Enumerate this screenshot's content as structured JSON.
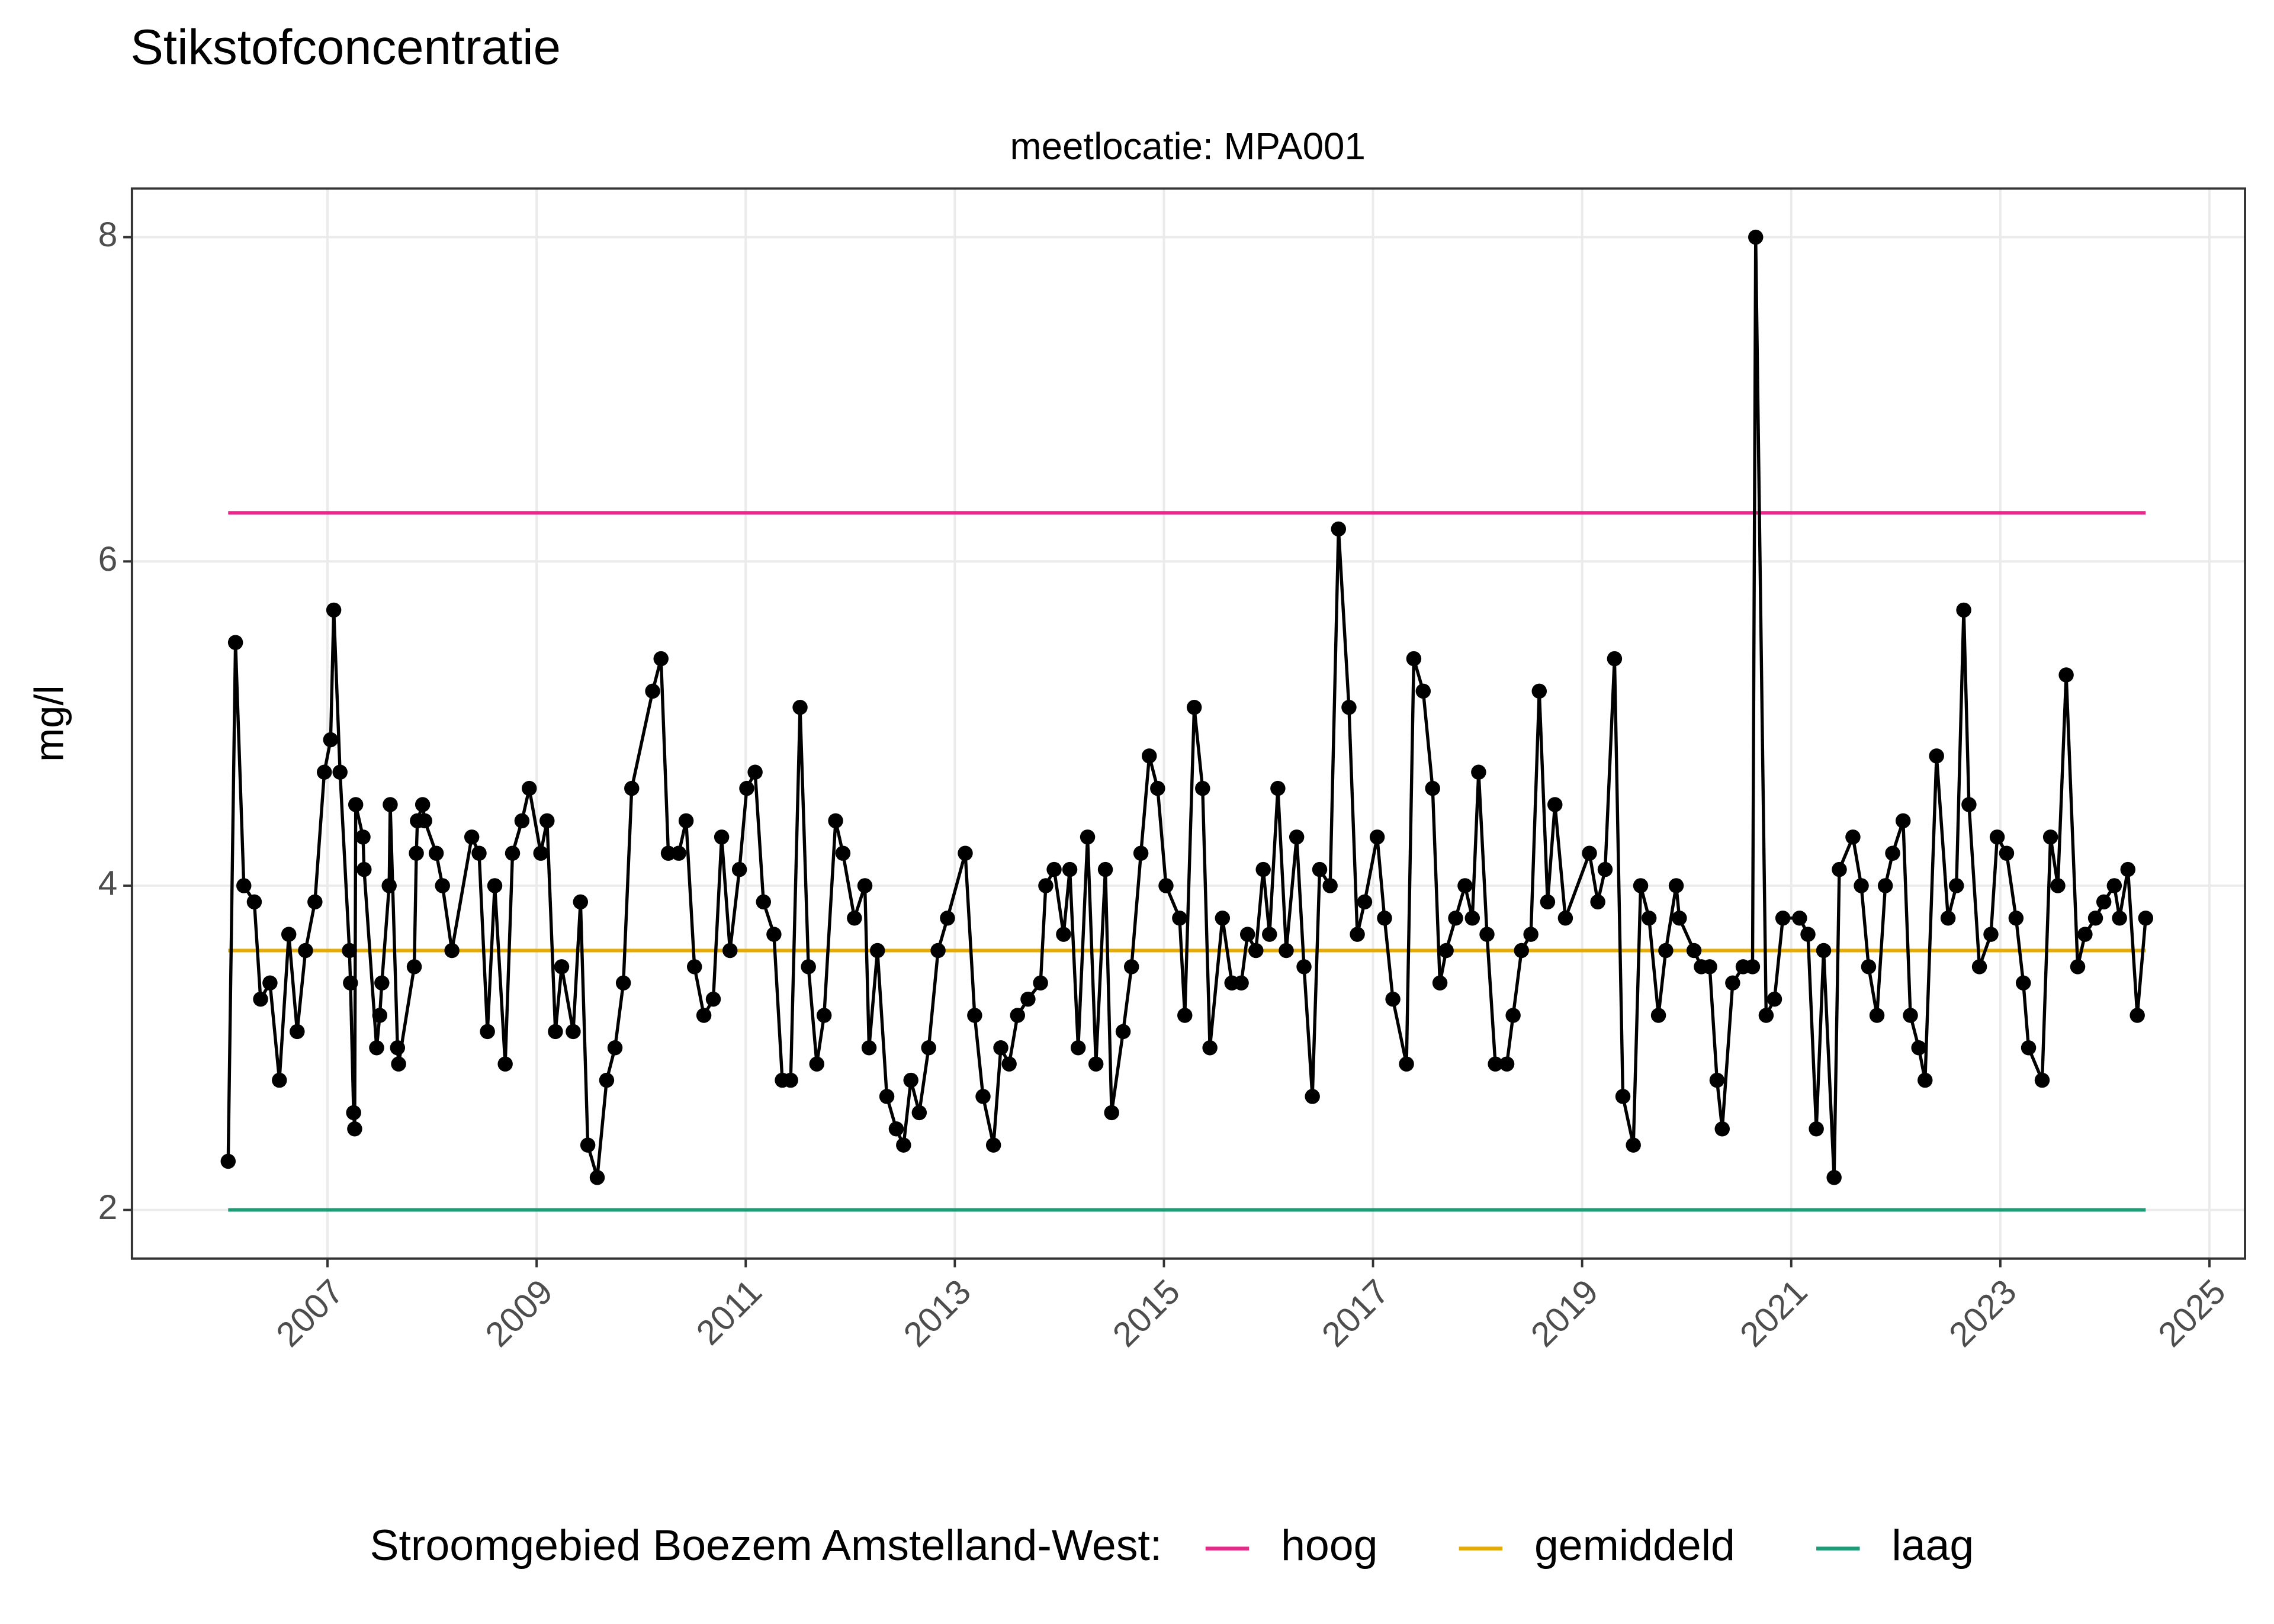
{
  "chart_data": {
    "type": "line",
    "title": "Stikstofconcentratie",
    "subtitle": "meetlocatie: MPA001",
    "ylabel": "mg/l",
    "legend_title": "Stroomgebied Boezem Amstelland-West:",
    "legend": "bottom",
    "grid": true,
    "markers": true,
    "color": "#000000",
    "x": [
      2006.05,
      2006.12,
      2006.2,
      2006.3,
      2006.36,
      2006.45,
      2006.54,
      2006.63,
      2006.71,
      2006.79,
      2006.88,
      2006.97,
      2007.03,
      2007.06,
      2007.12,
      2007.21,
      2007.22,
      2007.25,
      2007.26,
      2007.27,
      2007.34,
      2007.35,
      2007.47,
      2007.5,
      2007.52,
      2007.59,
      2007.6,
      2007.67,
      2007.68,
      2007.83,
      2007.85,
      2007.86,
      2007.91,
      2007.93,
      2008.04,
      2008.1,
      2008.19,
      2008.38,
      2008.45,
      2008.53,
      2008.6,
      2008.7,
      2008.77,
      2008.86,
      2008.93,
      2009.04,
      2009.1,
      2009.18,
      2009.24,
      2009.35,
      2009.42,
      2009.49,
      2009.58,
      2009.67,
      2009.75,
      2009.83,
      2009.91,
      2010.11,
      2010.19,
      2010.26,
      2010.36,
      2010.43,
      2010.51,
      2010.6,
      2010.69,
      2010.77,
      2010.85,
      2010.94,
      2011.01,
      2011.09,
      2011.17,
      2011.27,
      2011.35,
      2011.43,
      2011.52,
      2011.6,
      2011.68,
      2011.75,
      2011.86,
      2011.93,
      2012.04,
      2012.14,
      2012.18,
      2012.26,
      2012.35,
      2012.44,
      2012.51,
      2012.58,
      2012.66,
      2012.75,
      2012.84,
      2012.93,
      2013.1,
      2013.19,
      2013.27,
      2013.37,
      2013.44,
      2013.52,
      2013.6,
      2013.7,
      2013.82,
      2013.87,
      2013.95,
      2014.04,
      2014.1,
      2014.18,
      2014.27,
      2014.35,
      2014.44,
      2014.5,
      2014.61,
      2014.69,
      2014.78,
      2014.86,
      2014.94,
      2015.02,
      2015.15,
      2015.2,
      2015.29,
      2015.37,
      2015.44,
      2015.56,
      2015.65,
      2015.74,
      2015.8,
      2015.88,
      2015.95,
      2016.01,
      2016.09,
      2016.17,
      2016.27,
      2016.34,
      2016.42,
      2016.49,
      2016.59,
      2016.67,
      2016.77,
      2016.85,
      2016.92,
      2017.04,
      2017.11,
      2017.19,
      2017.32,
      2017.39,
      2017.48,
      2017.57,
      2017.64,
      2017.7,
      2017.79,
      2017.88,
      2017.95,
      2018.01,
      2018.09,
      2018.17,
      2018.28,
      2018.34,
      2018.42,
      2018.51,
      2018.59,
      2018.67,
      2018.74,
      2018.84,
      2019.07,
      2019.15,
      2019.22,
      2019.31,
      2019.39,
      2019.49,
      2019.56,
      2019.64,
      2019.73,
      2019.8,
      2019.9,
      2019.93,
      2020.07,
      2020.14,
      2020.22,
      2020.29,
      2020.34,
      2020.44,
      2020.54,
      2020.63,
      2020.66,
      2020.76,
      2020.84,
      2020.92,
      2021.08,
      2021.16,
      2021.24,
      2021.31,
      2021.41,
      2021.46,
      2021.59,
      2021.67,
      2021.74,
      2021.82,
      2021.9,
      2021.97,
      2022.07,
      2022.14,
      2022.22,
      2022.28,
      2022.39,
      2022.5,
      2022.58,
      2022.65,
      2022.7,
      2022.8,
      2022.91,
      2022.97,
      2023.06,
      2023.15,
      2023.22,
      2023.27,
      2023.4,
      2023.48,
      2023.55,
      2023.63,
      2023.74,
      2023.81,
      2023.91,
      2023.99,
      2024.09,
      2024.14,
      2024.22,
      2024.31,
      2024.39
    ],
    "values": [
      2.3,
      5.5,
      4.0,
      3.9,
      3.3,
      3.4,
      2.8,
      3.7,
      3.1,
      3.6,
      3.9,
      4.7,
      4.9,
      5.7,
      4.7,
      3.6,
      3.4,
      2.6,
      2.5,
      4.5,
      4.3,
      4.1,
      3.0,
      3.2,
      3.4,
      4.0,
      4.5,
      3.0,
      2.9,
      3.5,
      4.2,
      4.4,
      4.5,
      4.4,
      4.2,
      4.0,
      3.6,
      4.3,
      4.2,
      3.1,
      4.0,
      2.9,
      4.2,
      4.4,
      4.6,
      4.2,
      4.4,
      3.1,
      3.5,
      3.1,
      3.9,
      2.4,
      2.2,
      2.8,
      3.0,
      3.4,
      4.6,
      5.2,
      5.4,
      4.2,
      4.2,
      4.4,
      3.5,
      3.2,
      3.3,
      4.3,
      3.6,
      4.1,
      4.6,
      4.7,
      3.9,
      3.7,
      2.8,
      2.8,
      5.1,
      3.5,
      2.9,
      3.2,
      4.4,
      4.2,
      3.8,
      4.0,
      3.0,
      3.6,
      2.7,
      2.5,
      2.4,
      2.8,
      2.6,
      3.0,
      3.6,
      3.8,
      4.2,
      3.2,
      2.7,
      2.4,
      3.0,
      2.9,
      3.2,
      3.3,
      3.4,
      4.0,
      4.1,
      3.7,
      4.1,
      3.0,
      4.3,
      2.9,
      4.1,
      2.6,
      3.1,
      3.5,
      4.2,
      4.8,
      4.6,
      4.0,
      3.8,
      3.2,
      5.1,
      4.6,
      3.0,
      3.8,
      3.4,
      3.4,
      3.7,
      3.6,
      4.1,
      3.7,
      4.6,
      3.6,
      4.3,
      3.5,
      2.7,
      4.1,
      4.0,
      6.2,
      5.1,
      3.7,
      3.9,
      4.3,
      3.8,
      3.3,
      2.9,
      5.4,
      5.2,
      4.6,
      3.4,
      3.6,
      3.8,
      4.0,
      3.8,
      4.7,
      3.7,
      2.9,
      2.9,
      3.2,
      3.6,
      3.7,
      5.2,
      3.9,
      4.5,
      3.8,
      4.2,
      3.9,
      4.1,
      5.4,
      2.7,
      2.4,
      4.0,
      3.8,
      3.2,
      3.6,
      4.0,
      3.8,
      3.6,
      3.5,
      3.5,
      2.8,
      2.5,
      3.4,
      3.5,
      3.5,
      8.0,
      3.2,
      3.3,
      3.8,
      3.8,
      3.7,
      2.5,
      3.6,
      2.2,
      4.1,
      4.3,
      4.0,
      3.5,
      3.2,
      4.0,
      4.2,
      4.4,
      3.2,
      3.0,
      2.8,
      4.8,
      3.8,
      4.0,
      5.7,
      4.5,
      3.5,
      3.7,
      4.3,
      4.2,
      3.8,
      3.4,
      3.0,
      2.8,
      4.3,
      4.0,
      5.3,
      3.5,
      3.7,
      3.8,
      3.9,
      4.0,
      3.8,
      4.1,
      3.2,
      3.8
    ],
    "series": [
      {
        "name": "hoog",
        "color": "#e7298a",
        "x": [
          2006.05,
          2024.39
        ],
        "values": [
          6.3,
          6.3
        ]
      },
      {
        "name": "gemiddeld",
        "color": "#e6ab02",
        "x": [
          2006.05,
          2024.39
        ],
        "values": [
          3.6,
          3.6
        ]
      },
      {
        "name": "laag",
        "color": "#1b9e77",
        "x": [
          2006.05,
          2024.39
        ],
        "values": [
          2.0,
          2.0
        ]
      }
    ],
    "xlim": [
      2005.13,
      2025.34
    ],
    "xticks": [
      2007,
      2009,
      2011,
      2013,
      2015,
      2017,
      2019,
      2021,
      2023,
      2025
    ],
    "ylim": [
      1.7,
      8.3
    ],
    "yticks": [
      2,
      4,
      6,
      8
    ]
  }
}
